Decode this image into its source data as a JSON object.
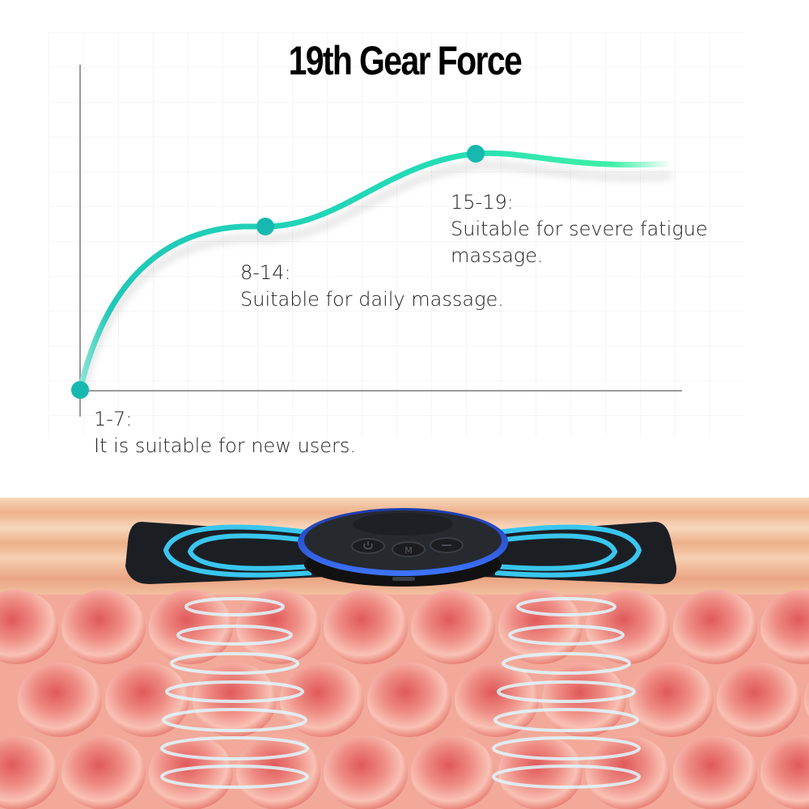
{
  "title": "19th Gear Force",
  "colors": {
    "curve": "#1fcfb5",
    "curve_end": "#3ff0a8",
    "dot": "#17b8b0",
    "axis": "#9a9a9a",
    "device_ring": "#2a5bdc",
    "pad_lines": "#39c6ef"
  },
  "chart_data": {
    "type": "line",
    "title": "19th Gear Force",
    "xlabel": "",
    "ylabel": "",
    "grid": true,
    "points": [
      {
        "range": "1-7",
        "label": "1-7:",
        "description": "It is suitable for new users."
      },
      {
        "range": "8-14",
        "label": "8-14:",
        "description": "Suitable for daily massage."
      },
      {
        "range": "15-19",
        "label": "15-19:",
        "description": "Suitable for severe fatigue massage."
      }
    ]
  },
  "labels": {
    "level1": {
      "range": "1-7:",
      "line1": "It is suitable for new users."
    },
    "level2": {
      "range": "8-14:",
      "line1": "Suitable for daily massage."
    },
    "level3": {
      "range": "15-19:",
      "line1": "Suitable for severe fatigue",
      "line2": "massage."
    }
  },
  "device": {
    "buttons": [
      "power-icon",
      "M",
      "minus-icon"
    ],
    "m_label": "M"
  }
}
